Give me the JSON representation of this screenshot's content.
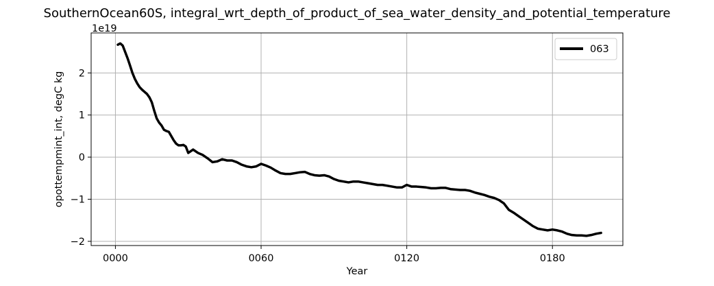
{
  "chart_data": {
    "type": "line",
    "title": "SouthernOcean60S, integral_wrt_depth_of_product_of_sea_water_density_and_potential_temperature",
    "xlabel": "Year",
    "ylabel": "opottempmint_int, degC kg",
    "y_offset_label": "1e19",
    "xlim": [
      -10,
      209
    ],
    "ylim": [
      -2.1,
      2.95
    ],
    "grid": true,
    "legend_position": "top-right",
    "x_ticks": [
      {
        "value": 0,
        "label": "0000"
      },
      {
        "value": 60,
        "label": "0060"
      },
      {
        "value": 120,
        "label": "0120"
      },
      {
        "value": 180,
        "label": "0180"
      }
    ],
    "y_ticks": [
      {
        "value": -2,
        "label": "−2"
      },
      {
        "value": -1,
        "label": "−1"
      },
      {
        "value": 0,
        "label": "0"
      },
      {
        "value": 1,
        "label": "1"
      },
      {
        "value": 2,
        "label": "2"
      }
    ],
    "series": [
      {
        "name": "063",
        "color": "#000000",
        "x": [
          1,
          2,
          3,
          4,
          5,
          6,
          7,
          8,
          9,
          10,
          11,
          12,
          13,
          14,
          15,
          16,
          17,
          18,
          19,
          20,
          21,
          22,
          23,
          24,
          25,
          26,
          27,
          28,
          29,
          30,
          32,
          34,
          36,
          38,
          40,
          42,
          44,
          46,
          48,
          50,
          52,
          54,
          56,
          58,
          60,
          62,
          64,
          66,
          68,
          70,
          72,
          74,
          76,
          78,
          80,
          82,
          84,
          86,
          88,
          90,
          92,
          94,
          96,
          98,
          100,
          102,
          104,
          106,
          108,
          110,
          112,
          114,
          116,
          118,
          120,
          122,
          124,
          126,
          128,
          130,
          132,
          134,
          136,
          138,
          140,
          142,
          144,
          146,
          148,
          150,
          152,
          154,
          156,
          158,
          160,
          162,
          164,
          166,
          168,
          170,
          172,
          174,
          176,
          178,
          180,
          182,
          184,
          186,
          188,
          190,
          192,
          194,
          196,
          198,
          200
        ],
        "y": [
          2.67,
          2.7,
          2.65,
          2.5,
          2.35,
          2.18,
          2.0,
          1.86,
          1.75,
          1.66,
          1.6,
          1.55,
          1.5,
          1.42,
          1.3,
          1.1,
          0.92,
          0.82,
          0.75,
          0.65,
          0.62,
          0.6,
          0.5,
          0.4,
          0.32,
          0.28,
          0.28,
          0.29,
          0.25,
          0.1,
          0.18,
          0.1,
          0.05,
          -0.03,
          -0.12,
          -0.1,
          -0.05,
          -0.08,
          -0.08,
          -0.12,
          -0.18,
          -0.22,
          -0.24,
          -0.22,
          -0.16,
          -0.2,
          -0.25,
          -0.32,
          -0.38,
          -0.4,
          -0.4,
          -0.38,
          -0.36,
          -0.35,
          -0.4,
          -0.43,
          -0.44,
          -0.43,
          -0.46,
          -0.52,
          -0.56,
          -0.58,
          -0.6,
          -0.58,
          -0.58,
          -0.6,
          -0.62,
          -0.64,
          -0.66,
          -0.66,
          -0.68,
          -0.7,
          -0.72,
          -0.72,
          -0.66,
          -0.7,
          -0.7,
          -0.71,
          -0.72,
          -0.74,
          -0.74,
          -0.73,
          -0.73,
          -0.76,
          -0.77,
          -0.78,
          -0.78,
          -0.8,
          -0.84,
          -0.87,
          -0.9,
          -0.94,
          -0.97,
          -1.02,
          -1.1,
          -1.25,
          -1.32,
          -1.4,
          -1.48,
          -1.56,
          -1.64,
          -1.7,
          -1.72,
          -1.74,
          -1.72,
          -1.74,
          -1.77,
          -1.82,
          -1.85,
          -1.86,
          -1.86,
          -1.87,
          -1.85,
          -1.82,
          -1.8
        ]
      }
    ]
  }
}
